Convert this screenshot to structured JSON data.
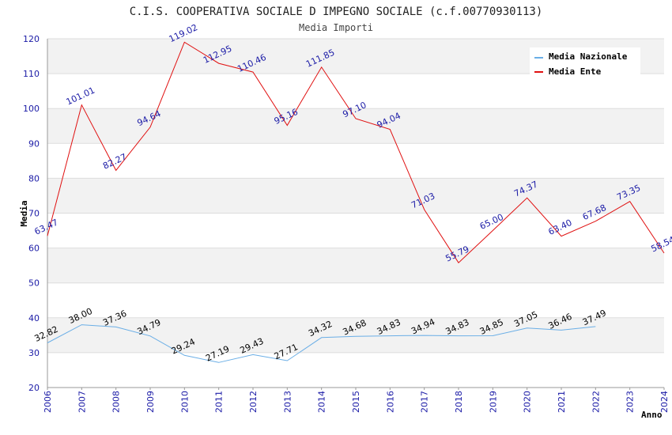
{
  "chart_data": {
    "type": "line",
    "title": "C.I.S. COOPERATIVA SOCIALE D IMPEGNO SOCIALE (c.f.00770930113)",
    "subtitle": "Media Importi",
    "xlabel": "Anno",
    "ylabel": "Media",
    "ylim": [
      20,
      120
    ],
    "yticks": [
      20,
      30,
      40,
      50,
      60,
      70,
      80,
      90,
      100,
      110,
      120
    ],
    "x": [
      "2006",
      "2007",
      "2008",
      "2009",
      "2010",
      "2011",
      "2012",
      "2013",
      "2014",
      "2015",
      "2016",
      "2017",
      "2018",
      "2019",
      "2020",
      "2021",
      "2022",
      "2023",
      "2024"
    ],
    "series": [
      {
        "name": "Media Nazionale",
        "color": "#6aaee6",
        "values": [
          32.82,
          38.0,
          37.36,
          34.79,
          29.24,
          27.19,
          29.43,
          27.71,
          34.32,
          34.68,
          34.83,
          34.94,
          34.83,
          34.85,
          37.05,
          36.46,
          37.49,
          null,
          null
        ],
        "labels": [
          "32.82",
          "38.00",
          "37.36",
          "34.79",
          "29.24",
          "27.19",
          "29.43",
          "27.71",
          "34.32",
          "34.68",
          "34.83",
          "34.94",
          "34.83",
          "34.85",
          "37.05",
          "36.46",
          "37.49",
          null,
          null
        ]
      },
      {
        "name": "Media Ente",
        "color": "#e01010",
        "values": [
          63.47,
          101.01,
          82.27,
          94.64,
          119.02,
          112.95,
          110.46,
          95.16,
          111.85,
          97.1,
          94.04,
          71.03,
          55.79,
          65.0,
          74.37,
          63.4,
          67.68,
          73.35,
          58.54
        ],
        "labels": [
          "63.47",
          "101.01",
          "82.27",
          "94.64",
          "119.02",
          "112.95",
          "110.46",
          "95.16",
          "111.85",
          "97.10",
          "94.04",
          "71.03",
          "55.79",
          "65.00",
          "74.37",
          "63.40",
          "67.68",
          "73.35",
          "58.54"
        ]
      }
    ],
    "legend": "top-right",
    "grid": true
  }
}
